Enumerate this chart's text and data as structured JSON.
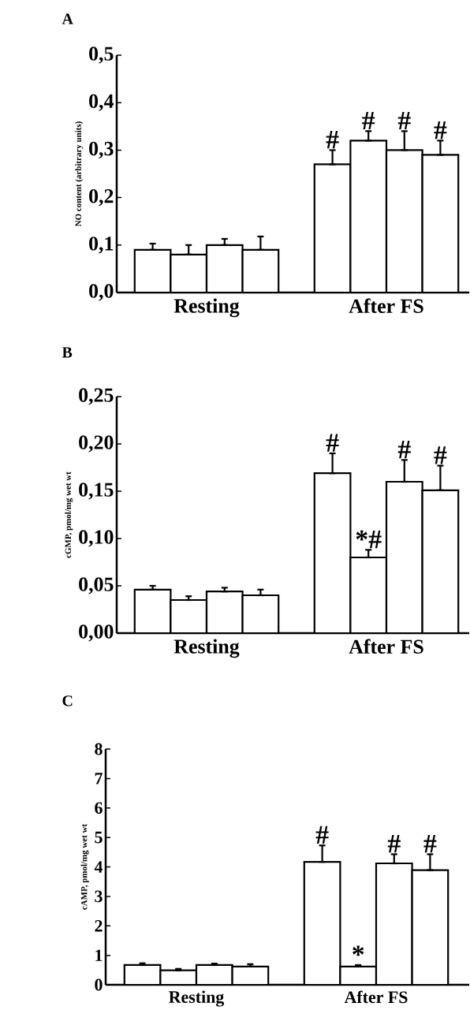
{
  "chart_data": [
    {
      "type": "bar",
      "title": "A",
      "ylabel": "NO content (arbitrary units)",
      "categories": [
        "Resting",
        "After FS"
      ],
      "series": [
        {
          "color": "#ffffff",
          "values": [
            0.09,
            0.27
          ],
          "errors": [
            [
              0.09,
              0.103
            ],
            [
              0.27,
              0.3
            ]
          ],
          "value_labels": [
            null,
            "#"
          ]
        },
        {
          "color": "#ffffff",
          "values": [
            0.08,
            0.32
          ],
          "errors": [
            [
              0.08,
              0.1
            ],
            [
              0.32,
              0.34
            ]
          ],
          "value_labels": [
            null,
            "#"
          ]
        },
        {
          "color": "#ffffff",
          "values": [
            0.1,
            0.3
          ],
          "errors": [
            [
              0.1,
              0.113
            ],
            [
              0.3,
              0.34
            ]
          ],
          "value_labels": [
            null,
            "#"
          ]
        },
        {
          "color": "#ffffff",
          "values": [
            0.09,
            0.29
          ],
          "errors": [
            [
              0.09,
              0.118
            ],
            [
              0.29,
              0.32
            ]
          ],
          "value_labels": [
            null,
            "#"
          ]
        }
      ],
      "ylim": [
        0,
        0.5
      ],
      "yticks": [
        {
          "value": 0,
          "label": "0,0"
        },
        {
          "value": 0.1,
          "label": "0,1"
        },
        {
          "value": 0.2,
          "label": "0,2"
        },
        {
          "value": 0.3,
          "label": "0,3"
        },
        {
          "value": 0.4,
          "label": "0,4"
        },
        {
          "value": 0.5,
          "label": "0,5"
        }
      ]
    },
    {
      "type": "bar",
      "title": "B",
      "ylabel": "cGMP, pmol/mg wet wt",
      "categories": [
        "Resting",
        "After FS"
      ],
      "series": [
        {
          "color": "#ffffff",
          "values": [
            0.046,
            0.169
          ],
          "errors": [
            [
              0.046,
              0.05
            ],
            [
              0.169,
              0.19
            ]
          ],
          "value_labels": [
            null,
            "#"
          ]
        },
        {
          "color": "#ffffff",
          "values": [
            0.035,
            0.08
          ],
          "errors": [
            [
              0.035,
              0.039
            ],
            [
              0.08,
              0.088
            ]
          ],
          "value_labels": [
            null,
            "*#"
          ]
        },
        {
          "color": "#ffffff",
          "values": [
            0.044,
            0.16
          ],
          "errors": [
            [
              0.044,
              0.048
            ],
            [
              0.16,
              0.183
            ]
          ],
          "value_labels": [
            null,
            "#"
          ]
        },
        {
          "color": "#ffffff",
          "values": [
            0.04,
            0.151
          ],
          "errors": [
            [
              0.04,
              0.046
            ],
            [
              0.151,
              0.177
            ]
          ],
          "value_labels": [
            null,
            "#"
          ]
        }
      ],
      "ylim": [
        0,
        0.25
      ],
      "yticks": [
        {
          "value": 0,
          "label": "0,00"
        },
        {
          "value": 0.05,
          "label": "0,05"
        },
        {
          "value": 0.1,
          "label": "0,10"
        },
        {
          "value": 0.15,
          "label": "0,15"
        },
        {
          "value": 0.2,
          "label": "0,20"
        },
        {
          "value": 0.25,
          "label": "0,25"
        }
      ]
    },
    {
      "type": "bar",
      "title": "C",
      "ylabel": "cAMP, pmol/mg wet wt",
      "categories": [
        "Resting",
        "After FS"
      ],
      "series": [
        {
          "color": "#ffffff",
          "values": [
            0.67,
            4.17
          ],
          "errors": [
            [
              0.67,
              0.73
            ],
            [
              4.17,
              4.73
            ]
          ],
          "value_labels": [
            null,
            "#"
          ]
        },
        {
          "color": "#ffffff",
          "values": [
            0.49,
            0.62
          ],
          "errors": [
            [
              0.49,
              0.54
            ],
            [
              0.62,
              0.67
            ]
          ],
          "value_labels": [
            null,
            "*"
          ]
        },
        {
          "color": "#ffffff",
          "values": [
            0.67,
            4.12
          ],
          "errors": [
            [
              0.67,
              0.72
            ],
            [
              4.12,
              4.43
            ]
          ],
          "value_labels": [
            null,
            "#"
          ]
        },
        {
          "color": "#ffffff",
          "values": [
            0.62,
            3.89
          ],
          "errors": [
            [
              0.62,
              0.7
            ],
            [
              3.89,
              4.43
            ]
          ],
          "value_labels": [
            null,
            "#"
          ]
        }
      ],
      "ylim": [
        0,
        8
      ],
      "yticks": [
        0,
        1,
        2,
        3,
        4,
        5,
        6,
        7,
        8
      ]
    }
  ]
}
